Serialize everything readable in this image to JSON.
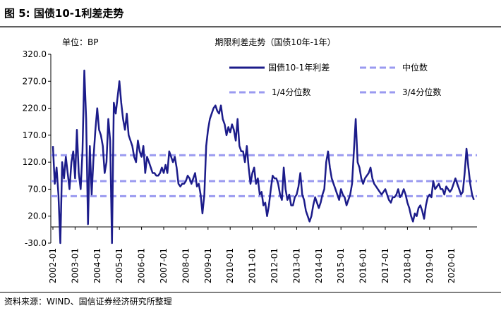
{
  "header": {
    "title": "图 5: 国债10-1利差走势"
  },
  "chart_data": {
    "type": "line",
    "title": "期限利差走势（国债10年-1年）",
    "unit_label": "单位：BP",
    "x": [
      "2002-01",
      "2002-02",
      "2002-03",
      "2002-04",
      "2002-05",
      "2002-06",
      "2002-07",
      "2002-08",
      "2002-09",
      "2002-10",
      "2002-11",
      "2002-12",
      "2003-01",
      "2003-02",
      "2003-03",
      "2003-04",
      "2003-05",
      "2003-06",
      "2003-07",
      "2003-08",
      "2003-09",
      "2003-10",
      "2003-11",
      "2003-12",
      "2004-01",
      "2004-02",
      "2004-03",
      "2004-04",
      "2004-05",
      "2004-06",
      "2004-07",
      "2004-08",
      "2004-09",
      "2004-10",
      "2004-11",
      "2004-12",
      "2005-01",
      "2005-02",
      "2005-03",
      "2005-04",
      "2005-05",
      "2005-06",
      "2005-07",
      "2005-08",
      "2005-09",
      "2005-10",
      "2005-11",
      "2005-12",
      "2006-01",
      "2006-02",
      "2006-03",
      "2006-04",
      "2006-05",
      "2006-06",
      "2006-07",
      "2006-08",
      "2006-09",
      "2006-10",
      "2006-11",
      "2006-12",
      "2007-01",
      "2007-02",
      "2007-03",
      "2007-04",
      "2007-05",
      "2007-06",
      "2007-07",
      "2007-08",
      "2007-09",
      "2007-10",
      "2007-11",
      "2007-12",
      "2008-01",
      "2008-02",
      "2008-03",
      "2008-04",
      "2008-05",
      "2008-06",
      "2008-07",
      "2008-08",
      "2008-09",
      "2008-10",
      "2008-11",
      "2008-12",
      "2009-01",
      "2009-02",
      "2009-03",
      "2009-04",
      "2009-05",
      "2009-06",
      "2009-07",
      "2009-08",
      "2009-09",
      "2009-10",
      "2009-11",
      "2009-12",
      "2010-01",
      "2010-02",
      "2010-03",
      "2010-04",
      "2010-05",
      "2010-06",
      "2010-07",
      "2010-08",
      "2010-09",
      "2010-10",
      "2010-11",
      "2010-12",
      "2011-01",
      "2011-02",
      "2011-03",
      "2011-04",
      "2011-05",
      "2011-06",
      "2011-07",
      "2011-08",
      "2011-09",
      "2011-10",
      "2011-11",
      "2011-12",
      "2012-01",
      "2012-02",
      "2012-03",
      "2012-04",
      "2012-05",
      "2012-06",
      "2012-07",
      "2012-08",
      "2012-09",
      "2012-10",
      "2012-11",
      "2012-12",
      "2013-01",
      "2013-02",
      "2013-03",
      "2013-04",
      "2013-05",
      "2013-06",
      "2013-07",
      "2013-08",
      "2013-09",
      "2013-10",
      "2013-11",
      "2013-12",
      "2014-01",
      "2014-02",
      "2014-03",
      "2014-04",
      "2014-05",
      "2014-06",
      "2014-07",
      "2014-08",
      "2014-09",
      "2014-10",
      "2014-11",
      "2014-12",
      "2015-01",
      "2015-02",
      "2015-03",
      "2015-04",
      "2015-05",
      "2015-06",
      "2015-07",
      "2015-08",
      "2015-09",
      "2015-10",
      "2015-11",
      "2015-12",
      "2016-01",
      "2016-02",
      "2016-03",
      "2016-04",
      "2016-05",
      "2016-06",
      "2016-07",
      "2016-08",
      "2016-09",
      "2016-10",
      "2016-11",
      "2016-12",
      "2017-01",
      "2017-02",
      "2017-03",
      "2017-04",
      "2017-05",
      "2017-06",
      "2017-07",
      "2017-08",
      "2017-09",
      "2017-10",
      "2017-11",
      "2017-12",
      "2018-01",
      "2018-02",
      "2018-03",
      "2018-04",
      "2018-05",
      "2018-06",
      "2018-07",
      "2018-08",
      "2018-09",
      "2018-10",
      "2018-11",
      "2018-12",
      "2019-01",
      "2019-02",
      "2019-03",
      "2019-04",
      "2019-05",
      "2019-06",
      "2019-07",
      "2019-08",
      "2019-09",
      "2019-10",
      "2019-11",
      "2019-12",
      "2020-01",
      "2020-02",
      "2020-03",
      "2020-04",
      "2020-05",
      "2020-06",
      "2020-07",
      "2020-08",
      "2020-09",
      "2020-10",
      "2020-11",
      "2020-12",
      "2021-01"
    ],
    "series": [
      {
        "name": "国债10-1年利差",
        "color": "#1c1c8a",
        "values": [
          150,
          80,
          110,
          60,
          -30,
          120,
          90,
          130,
          100,
          70,
          120,
          140,
          90,
          180,
          100,
          70,
          140,
          290,
          200,
          5,
          150,
          60,
          130,
          180,
          220,
          180,
          170,
          150,
          100,
          120,
          200,
          160,
          -30,
          230,
          210,
          240,
          270,
          230,
          200,
          180,
          210,
          170,
          160,
          150,
          130,
          120,
          160,
          140,
          130,
          150,
          100,
          130,
          120,
          110,
          100,
          100,
          95,
          95,
          100,
          110,
          100,
          115,
          100,
          140,
          130,
          120,
          130,
          110,
          80,
          75,
          80,
          80,
          85,
          95,
          90,
          80,
          90,
          100,
          75,
          80,
          60,
          25,
          60,
          150,
          180,
          200,
          210,
          220,
          225,
          215,
          210,
          225,
          200,
          190,
          170,
          185,
          175,
          190,
          180,
          160,
          200,
          150,
          140,
          140,
          120,
          150,
          110,
          80,
          100,
          110,
          80,
          90,
          60,
          65,
          40,
          45,
          20,
          40,
          70,
          95,
          90,
          90,
          80,
          60,
          50,
          110,
          70,
          50,
          60,
          40,
          40,
          55,
          60,
          75,
          100,
          60,
          50,
          30,
          20,
          10,
          20,
          40,
          55,
          45,
          35,
          45,
          60,
          70,
          120,
          140,
          110,
          90,
          80,
          70,
          60,
          50,
          70,
          60,
          55,
          40,
          50,
          60,
          80,
          140,
          200,
          120,
          110,
          90,
          80,
          90,
          95,
          100,
          110,
          90,
          80,
          75,
          70,
          65,
          60,
          65,
          70,
          60,
          50,
          45,
          55,
          55,
          60,
          70,
          55,
          60,
          70,
          60,
          45,
          35,
          20,
          10,
          25,
          20,
          35,
          40,
          30,
          15,
          40,
          55,
          60,
          55,
          85,
          70,
          75,
          80,
          70,
          70,
          60,
          75,
          70,
          65,
          70,
          80,
          90,
          80,
          70,
          60,
          65,
          100,
          145,
          110,
          80,
          60,
          50
        ]
      }
    ],
    "reference_lines": [
      {
        "name": "中位数",
        "value": 85,
        "color": "#9a9af0"
      },
      {
        "name": "1/4分位数",
        "value": 57,
        "color": "#9a9af0"
      },
      {
        "name": "3/4分位数",
        "value": 133,
        "color": "#9a9af0"
      }
    ],
    "ylim": [
      -30,
      320
    ],
    "yticks": [
      {
        "value": -30,
        "label": "-30.0"
      },
      {
        "value": 20,
        "label": "20.0"
      },
      {
        "value": 70,
        "label": "70.0"
      },
      {
        "value": 120,
        "label": "120.0"
      },
      {
        "value": 170,
        "label": "170.0"
      },
      {
        "value": 220,
        "label": "220.0"
      },
      {
        "value": 270,
        "label": "270.0"
      },
      {
        "value": 320,
        "label": "320.0"
      }
    ],
    "xticks": [
      "2002-01",
      "2003-01",
      "2004-01",
      "2005-01",
      "2006-01",
      "2007-01",
      "2008-01",
      "2009-01",
      "2010-01",
      "2011-01",
      "2012-01",
      "2013-01",
      "2014-01",
      "2015-01",
      "2016-01",
      "2017-01",
      "2018-01",
      "2019-01",
      "2020-01"
    ],
    "grid": false
  },
  "footer": {
    "source": "资料来源：WIND、国信证券经济研究所整理"
  }
}
